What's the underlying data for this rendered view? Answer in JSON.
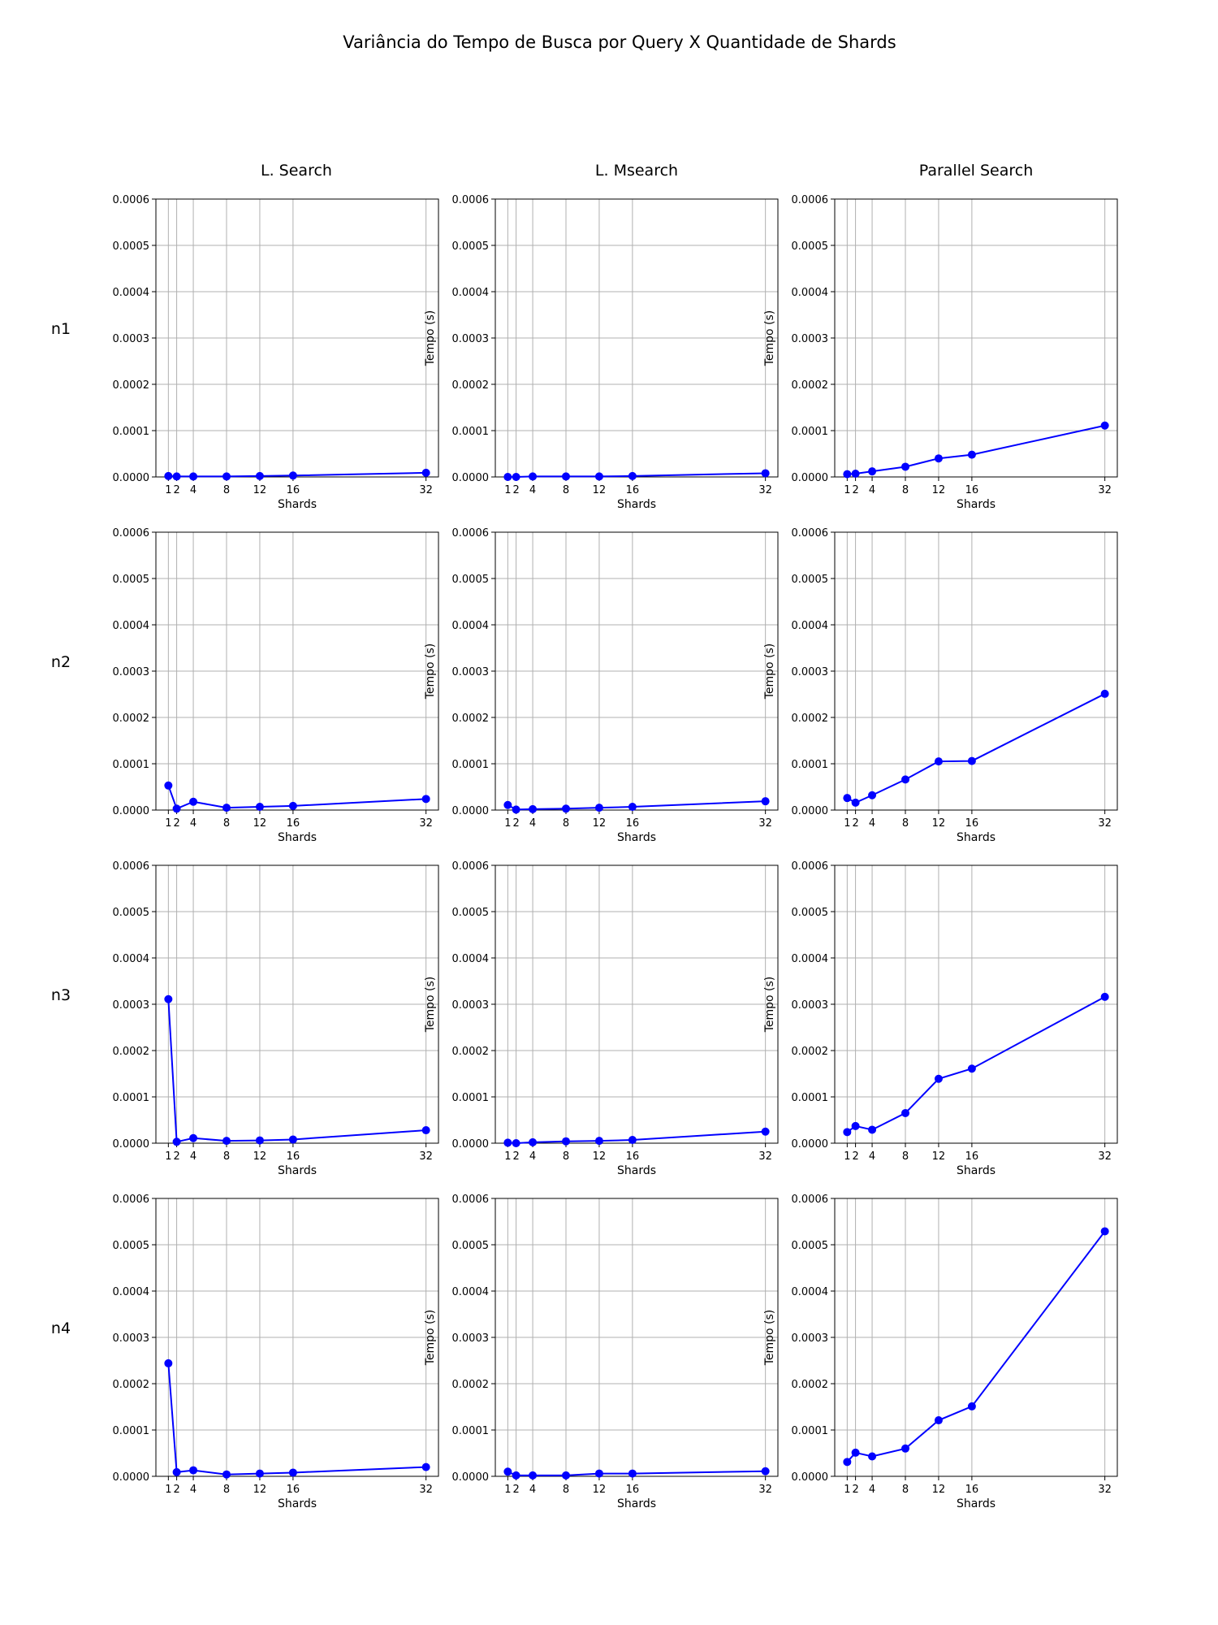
{
  "chart_data": {
    "type": "line",
    "title": "Variância do Tempo de Busca por Query X Quantidade de Shards",
    "column_titles": [
      "L. Search",
      "L. Msearch",
      "Parallel Search"
    ],
    "row_labels": [
      "n1",
      "n2",
      "n3",
      "n4"
    ],
    "xlabel": "Shards",
    "ylabel": "Tempo (s)",
    "x": [
      1,
      2,
      4,
      8,
      12,
      16,
      32
    ],
    "xticks": [
      "1",
      "2",
      "4",
      "8",
      "12",
      "16",
      "32"
    ],
    "xlim": [
      -0.5,
      33.5
    ],
    "ylim": [
      0,
      0.0006
    ],
    "yticks": [
      "0.0000",
      "0.0001",
      "0.0002",
      "0.0003",
      "0.0004",
      "0.0005",
      "0.0006"
    ],
    "grid": true,
    "marker": "circle",
    "color": "#0000ff",
    "panels": [
      [
        {
          "values": [
            2e-06,
            1e-06,
            1e-06,
            1e-06,
            2e-06,
            3e-06,
            9e-06
          ]
        },
        {
          "values": [
            0.0,
            0.0,
            1e-06,
            1e-06,
            1e-06,
            2e-06,
            8e-06
          ]
        },
        {
          "values": [
            6e-06,
            7e-06,
            1.2e-05,
            2.2e-05,
            4e-05,
            4.8e-05,
            0.000111
          ]
        }
      ],
      [
        {
          "values": [
            5.3e-05,
            3e-06,
            1.8e-05,
            5e-06,
            7e-06,
            9e-06,
            2.4e-05
          ]
        },
        {
          "values": [
            1.1e-05,
            1e-06,
            2e-06,
            3e-06,
            5e-06,
            7e-06,
            1.9e-05
          ]
        },
        {
          "values": [
            2.6e-05,
            1.6e-05,
            3.2e-05,
            6.6e-05,
            0.000105,
            0.000106,
            0.000251
          ]
        }
      ],
      [
        {
          "values": [
            0.000311,
            3e-06,
            1.1e-05,
            5e-06,
            6e-06,
            8e-06,
            2.8e-05
          ]
        },
        {
          "values": [
            1e-06,
            0.0,
            2e-06,
            4e-06,
            5e-06,
            7e-06,
            2.5e-05
          ]
        },
        {
          "values": [
            2.4e-05,
            3.7e-05,
            2.9e-05,
            6.5e-05,
            0.000139,
            0.000161,
            0.000316
          ]
        }
      ],
      [
        {
          "values": [
            0.000244,
            9e-06,
            1.3e-05,
            4e-06,
            6e-06,
            8e-06,
            2e-05
          ]
        },
        {
          "values": [
            1e-05,
            2e-06,
            2e-06,
            2e-06,
            6e-06,
            6e-06,
            1.1e-05
          ]
        },
        {
          "values": [
            3.1e-05,
            5.1e-05,
            4.3e-05,
            6e-05,
            0.000121,
            0.000151,
            0.000529
          ]
        }
      ]
    ]
  }
}
